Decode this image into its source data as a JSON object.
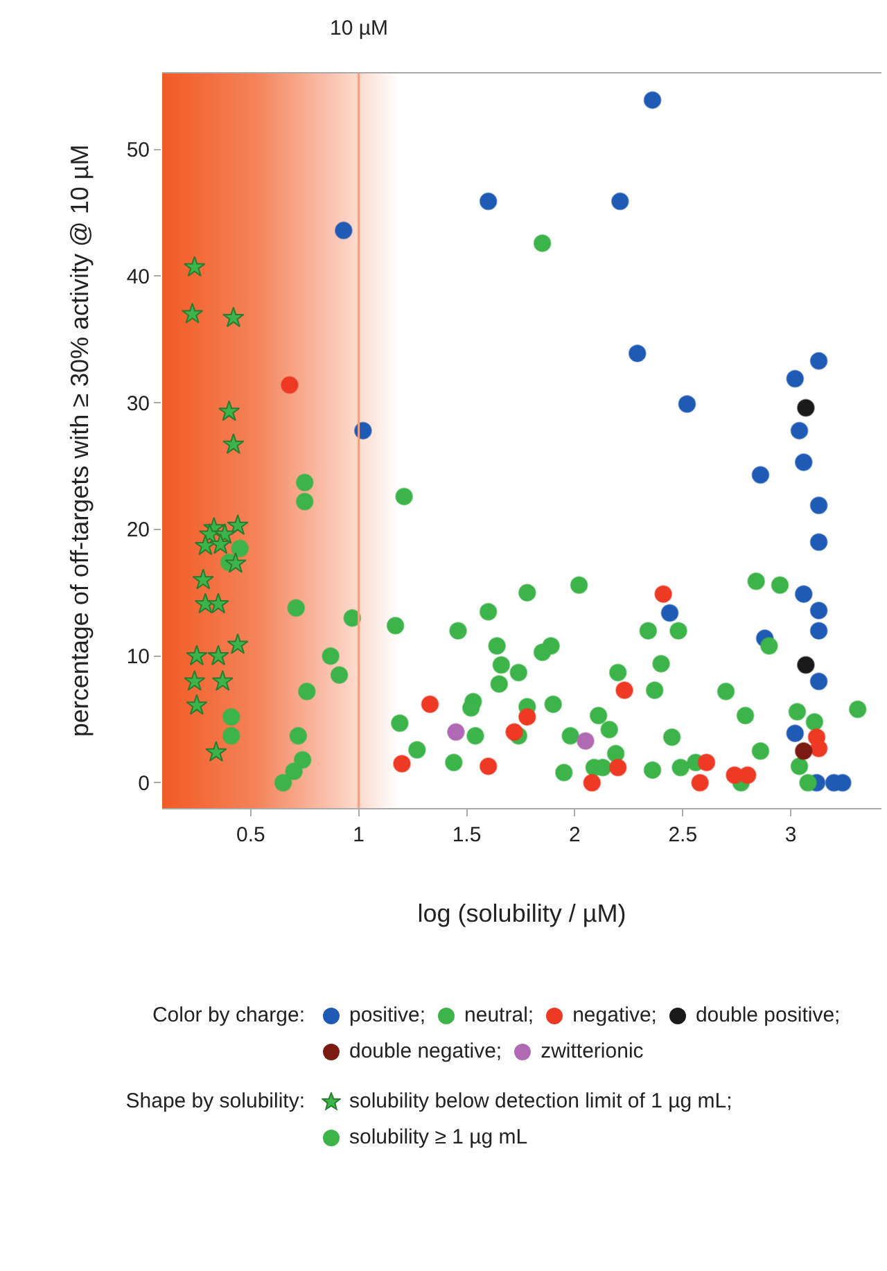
{
  "chart_data": {
    "type": "scatter",
    "xlabel": "log (solubility / µM)",
    "ylabel": "percentage of off-targets with ≥ 30% activity @ 10 µM",
    "xlim": [
      0.09,
      3.42
    ],
    "xticks": [
      0.5,
      1,
      1.5,
      2,
      2.5,
      3
    ],
    "ylim": [
      -2,
      56
    ],
    "yticks": [
      0,
      10,
      20,
      30,
      40,
      50
    ],
    "grid": false,
    "legend": "bottom",
    "marker": "circle",
    "ref_lines": [
      {
        "axis": "x",
        "value": 1,
        "label": "10 µM",
        "color": "#f4a07e"
      }
    ],
    "bands": [
      {
        "axis": "x",
        "from": 0.09,
        "to": 1.19,
        "color": "#f15a24"
      }
    ],
    "annotations": [
      "Color by charge:",
      "Shape by solubility:",
      "solubility ≥ 1 µg mL"
    ],
    "series": [
      {
        "name": "positive;",
        "color": "#1f5bb5",
        "x": [
          0.93,
          1.6,
          1.02,
          2.36,
          2.21,
          2.29,
          2.52,
          3.13,
          3.02,
          3.04,
          3.06,
          2.86,
          3.13,
          3.13,
          3.06,
          3.13,
          3.13,
          2.88,
          3.13,
          3.02,
          3.12,
          3.2,
          3.24,
          2.44
        ],
        "values": [
          43.6,
          45.9,
          27.8,
          53.9,
          45.9,
          33.9,
          29.9,
          33.3,
          31.9,
          27.8,
          25.3,
          24.3,
          21.9,
          19.0,
          14.9,
          13.6,
          12.0,
          11.4,
          8.0,
          3.9,
          0,
          0,
          0,
          13.4
        ]
      },
      {
        "name": "neutral;",
        "color": "#3cb44a",
        "x": [
          1.85,
          2.84,
          2.95,
          2.9,
          3.31,
          3.03,
          3.11,
          3.04,
          3.08,
          2.7,
          2.79,
          2.86,
          2.77,
          2.34,
          2.48,
          2.4,
          2.2,
          2.37,
          2.02,
          1.78,
          1.89,
          1.85,
          1.74,
          1.9,
          1.78,
          1.74,
          2.11,
          2.16,
          1.98,
          2.45,
          2.19,
          1.95,
          2.09,
          2.13,
          2.36,
          2.49,
          2.56,
          0.75,
          0.75,
          1.21,
          0.45,
          0.4,
          0.71,
          0.97,
          1.17,
          1.46,
          1.6,
          1.64,
          1.66,
          1.65,
          0.87,
          0.91,
          0.76,
          0.41,
          0.41,
          0.72,
          0.74,
          0.7,
          0.65,
          1.19,
          1.27,
          1.44,
          1.53,
          1.52,
          1.54
        ],
        "values": [
          42.6,
          15.9,
          15.6,
          10.8,
          5.8,
          5.6,
          4.8,
          1.3,
          0,
          7.2,
          5.3,
          2.5,
          0,
          12.0,
          12.0,
          9.4,
          8.7,
          7.3,
          15.6,
          15.0,
          10.8,
          10.3,
          8.7,
          6.2,
          6.0,
          3.7,
          5.3,
          4.2,
          3.7,
          3.6,
          2.3,
          0.8,
          1.2,
          1.2,
          1.0,
          1.2,
          1.6,
          23.7,
          22.2,
          22.6,
          18.5,
          17.4,
          13.8,
          13.0,
          12.4,
          12.0,
          13.5,
          10.8,
          9.3,
          7.8,
          10.0,
          8.5,
          7.2,
          5.2,
          3.7,
          3.7,
          1.8,
          0.9,
          0,
          4.7,
          2.6,
          1.6,
          6.4,
          5.9,
          3.7
        ]
      },
      {
        "name": "negative;",
        "color": "#ee3a24",
        "x": [
          0.68,
          3.12,
          3.13,
          2.74,
          2.8,
          2.41,
          2.23,
          1.78,
          1.72,
          2.2,
          2.08,
          2.61,
          2.58,
          1.33,
          1.2,
          1.6
        ],
        "values": [
          31.4,
          3.6,
          2.7,
          0.6,
          0.6,
          14.9,
          7.3,
          5.2,
          4.0,
          1.2,
          0,
          1.6,
          0,
          6.2,
          1.5,
          1.3
        ]
      },
      {
        "name": "double positive;",
        "color": "#1a1a1a",
        "x": [
          3.07,
          3.07
        ],
        "values": [
          29.6,
          9.3
        ]
      },
      {
        "name": "double negative;",
        "color": "#7b1a12",
        "x": [
          3.06
        ],
        "values": [
          2.5
        ]
      },
      {
        "name": "zwitterionic",
        "color": "#b06ab3",
        "x": [
          2.05,
          1.45
        ],
        "values": [
          3.3,
          4.0
        ]
      },
      {
        "name": "solubility below detection limit of 1 µg mL;",
        "color": "#3cb44a",
        "marker": "star",
        "x": [
          0.24,
          0.23,
          0.42,
          0.4,
          0.42,
          0.33,
          0.44,
          0.31,
          0.38,
          0.29,
          0.36,
          0.43,
          0.28,
          0.29,
          0.35,
          0.44,
          0.25,
          0.35,
          0.24,
          0.37,
          0.25,
          0.34
        ],
        "values": [
          40.7,
          37.0,
          36.7,
          29.3,
          26.7,
          20.1,
          20.3,
          19.6,
          19.6,
          18.7,
          18.8,
          17.3,
          16.0,
          14.1,
          14.1,
          10.9,
          10.0,
          10.0,
          8.0,
          8.0,
          6.1,
          2.4
        ]
      }
    ]
  }
}
